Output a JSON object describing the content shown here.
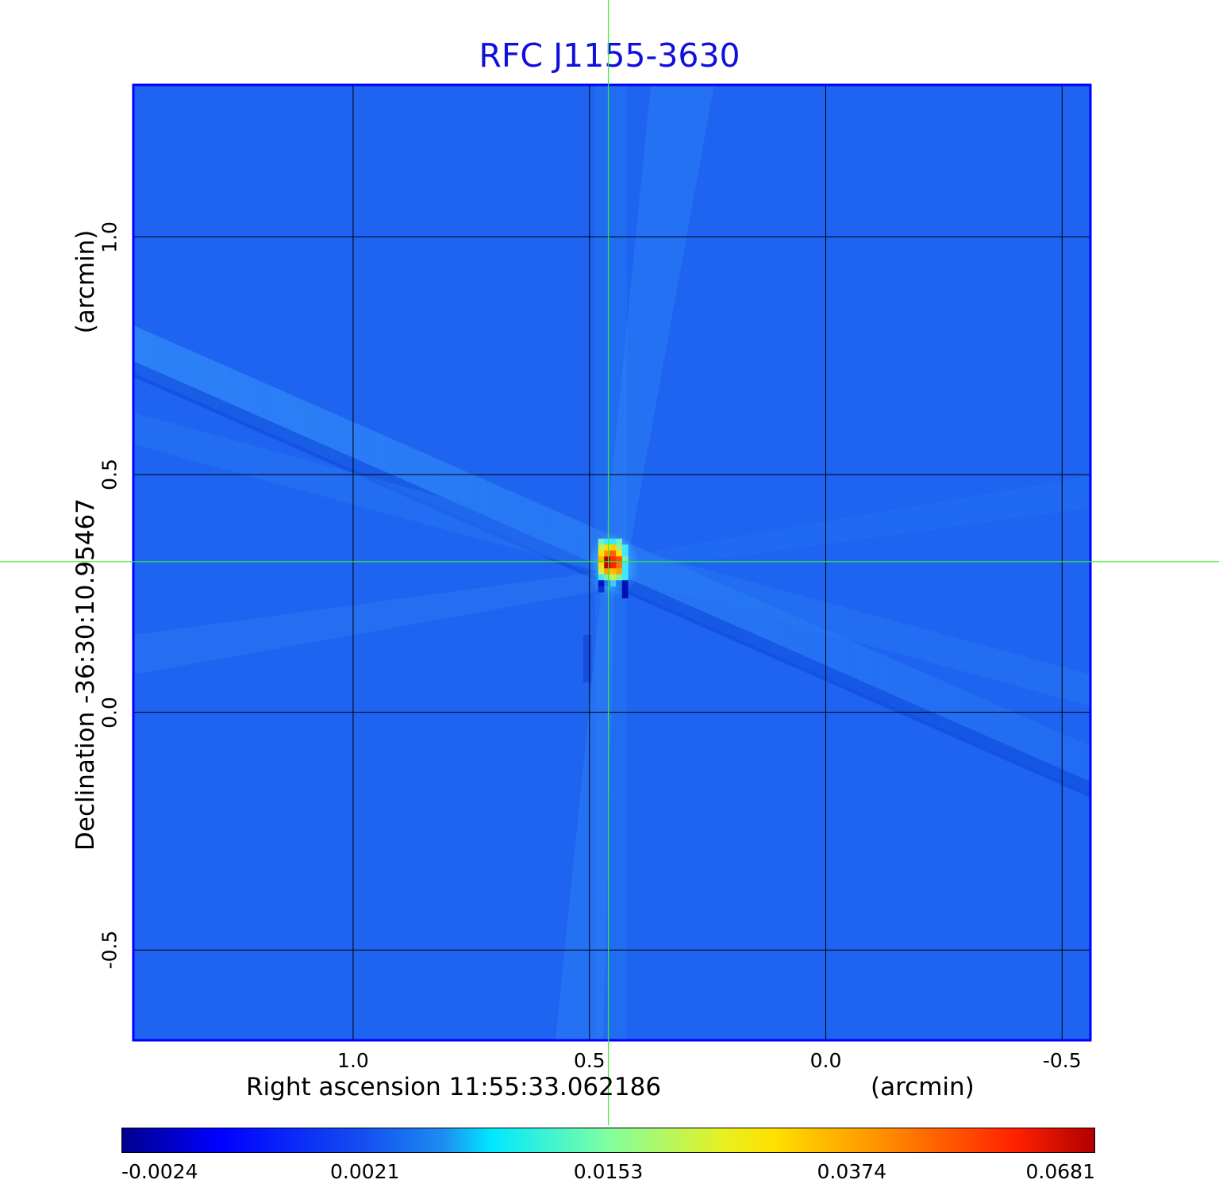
{
  "chart_data": {
    "type": "heatmap",
    "title": "RFC J1155-3630",
    "xlabel": "Right ascension  11:55:33.062186",
    "xunit": "(arcmin)",
    "ylabel": "Declination  -36:30:10.95467",
    "yunit": "(arcmin)",
    "x_ticks": [
      "1.0",
      "0.5",
      "0.0",
      "-0.5"
    ],
    "x_tick_values": [
      1.0,
      0.5,
      0.0,
      -0.5
    ],
    "y_ticks": [
      "1.0",
      "0.5",
      "0.0",
      "-0.5"
    ],
    "y_tick_values": [
      1.0,
      0.5,
      0.0,
      -0.5
    ],
    "xlim": [
      1.465,
      -0.56
    ],
    "ylim": [
      -0.69,
      1.32
    ],
    "grid": true,
    "crosshair": {
      "x": 0.46,
      "y": 0.317
    },
    "peak": {
      "x": 0.45,
      "y": 0.31,
      "value": 0.0681
    },
    "colormap": "jet",
    "colorbar_labels": [
      "-0.0024",
      "0.0021",
      "0.0153",
      "0.0374",
      "0.0681"
    ],
    "colorbar_values": [
      -0.0024,
      0.0021,
      0.0153,
      0.0374,
      0.0681
    ],
    "background_color": "#1e64f0",
    "crosshair_color": "#33ee33",
    "frame_color": "#0000ff",
    "grid_color": "#000000"
  }
}
